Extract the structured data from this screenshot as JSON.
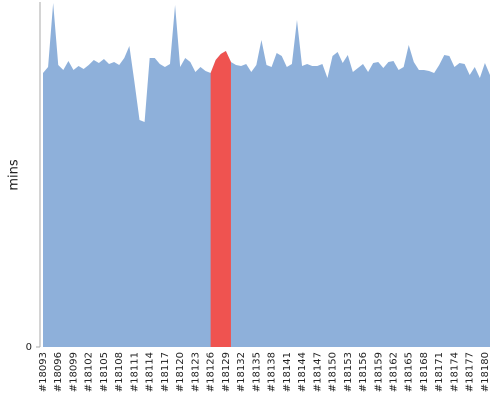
{
  "chart_data": {
    "type": "area",
    "y_label": "mins",
    "categories": [
      "#18093",
      null,
      null,
      "#18096",
      null,
      null,
      "#18099",
      null,
      null,
      "#18102",
      null,
      null,
      "#18105",
      null,
      null,
      "#18108",
      null,
      null,
      "#18111",
      null,
      null,
      "#18114",
      null,
      null,
      "#18117",
      null,
      null,
      "#18120",
      null,
      null,
      "#18123",
      null,
      null,
      "#18126",
      null,
      null,
      "#18129",
      null,
      null,
      "#18132",
      null,
      null,
      "#18135",
      null,
      null,
      "#18138",
      null,
      null,
      "#18141",
      null,
      null,
      "#18144",
      null,
      null,
      "#18147",
      null,
      null,
      "#18150",
      null,
      null,
      "#18153",
      null,
      null,
      "#18156",
      null,
      null,
      "#18159",
      null,
      null,
      "#18162",
      null,
      null,
      "#18165",
      null,
      null,
      "#18168",
      null,
      null,
      "#18171",
      null,
      null,
      "#18174",
      null,
      null,
      "#18177",
      null,
      null,
      "#18180",
      null
    ],
    "values": [
      2.74,
      2.8,
      3.44,
      2.82,
      2.77,
      2.86,
      2.77,
      2.81,
      2.78,
      2.82,
      2.87,
      2.84,
      2.88,
      2.83,
      2.85,
      2.82,
      2.89,
      3.01,
      2.65,
      2.27,
      2.25,
      2.89,
      2.89,
      2.83,
      2.8,
      2.83,
      3.42,
      2.8,
      2.89,
      2.85,
      2.75,
      2.8,
      2.76,
      2.74,
      2.87,
      2.93,
      2.96,
      2.85,
      2.82,
      2.81,
      2.83,
      2.75,
      2.82,
      3.07,
      2.82,
      2.8,
      2.94,
      2.91,
      2.8,
      2.83,
      3.27,
      2.81,
      2.83,
      2.81,
      2.81,
      2.83,
      2.69,
      2.91,
      2.95,
      2.84,
      2.92,
      2.75,
      2.79,
      2.83,
      2.75,
      2.84,
      2.85,
      2.79,
      2.85,
      2.86,
      2.77,
      2.8,
      3.02,
      2.85,
      2.77,
      2.77,
      2.76,
      2.74,
      2.82,
      2.92,
      2.91,
      2.8,
      2.84,
      2.83,
      2.72,
      2.8,
      2.69,
      2.84,
      2.72
    ],
    "color": "#8eb0da",
    "highlight": {
      "from": 33,
      "to": 37,
      "color": "#ef5350"
    },
    "ylim": [
      0,
      3.45
    ],
    "yticks": [
      0
    ]
  }
}
